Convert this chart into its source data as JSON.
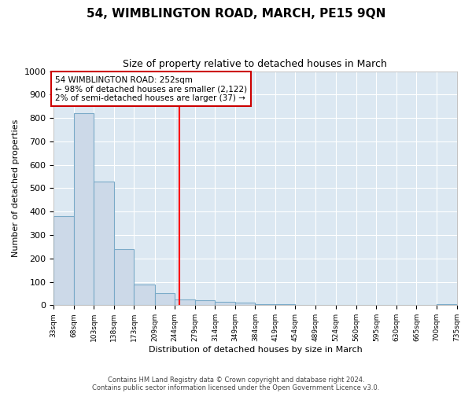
{
  "title": "54, WIMBLINGTON ROAD, MARCH, PE15 9QN",
  "subtitle": "Size of property relative to detached houses in March",
  "xlabel": "Distribution of detached houses by size in March",
  "ylabel": "Number of detached properties",
  "bar_color": "#ccd9e8",
  "bar_edge_color": "#7aaac8",
  "bg_color": "#dce8f2",
  "grid_color": "#ffffff",
  "red_line_x": 252,
  "annotation_text": "54 WIMBLINGTON ROAD: 252sqm\n← 98% of detached houses are smaller (2,122)\n2% of semi-detached houses are larger (37) →",
  "annotation_box_color": "#ffffff",
  "annotation_box_edge": "#cc0000",
  "ylim": [
    0,
    1000
  ],
  "xlim": [
    33,
    735
  ],
  "bin_edges": [
    33,
    68,
    103,
    138,
    173,
    209,
    244,
    279,
    314,
    349,
    384,
    419,
    454,
    489,
    524,
    560,
    595,
    630,
    665,
    700,
    735
  ],
  "bar_heights": [
    380,
    820,
    530,
    240,
    90,
    50,
    25,
    20,
    15,
    10,
    5,
    3,
    0,
    0,
    0,
    0,
    0,
    0,
    0,
    3
  ],
  "yticks": [
    0,
    100,
    200,
    300,
    400,
    500,
    600,
    700,
    800,
    900,
    1000
  ],
  "footer_line1": "Contains HM Land Registry data © Crown copyright and database right 2024.",
  "footer_line2": "Contains public sector information licensed under the Open Government Licence v3.0."
}
